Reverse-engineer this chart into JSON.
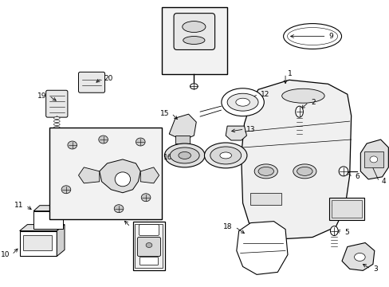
{
  "bg_color": "#ffffff",
  "fig_width": 4.89,
  "fig_height": 3.6,
  "dpi": 100,
  "label_fontsize": 6.5,
  "lw": 0.7
}
